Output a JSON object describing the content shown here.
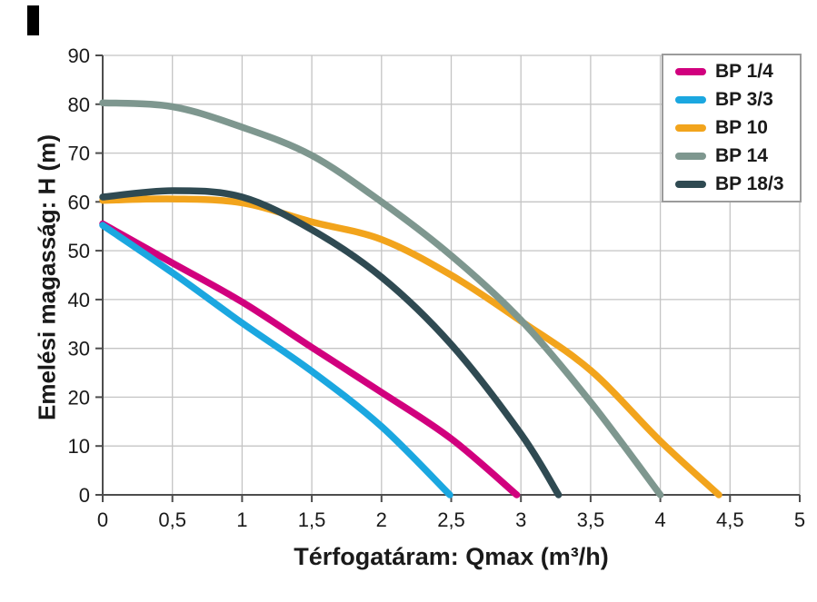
{
  "corner_mark": {
    "color": "#000000"
  },
  "chart_data": {
    "type": "line",
    "title": "",
    "xlabel": "Térfogatáram: Qmax (m³/h)",
    "ylabel": "Emelési magasság: H (m)",
    "xlim": [
      0,
      5
    ],
    "ylim": [
      0,
      90
    ],
    "grid": true,
    "legend_position": "top-right",
    "x_ticks": [
      0,
      0.5,
      1,
      1.5,
      2,
      2.5,
      3,
      3.5,
      4,
      4.5,
      5
    ],
    "x_tick_labels": [
      "0",
      "0,5",
      "1",
      "1,5",
      "2",
      "2,5",
      "3",
      "3,5",
      "4",
      "4,5",
      "5"
    ],
    "y_ticks": [
      0,
      10,
      20,
      30,
      40,
      50,
      60,
      70,
      80,
      90
    ],
    "y_tick_labels": [
      "0",
      "10",
      "20",
      "30",
      "40",
      "50",
      "60",
      "70",
      "80",
      "90"
    ],
    "grid_color": "#c4c4c4",
    "axis_color": "#4d4d4d",
    "series": [
      {
        "name": "BP 1/4",
        "color": "#d1007e",
        "points": [
          [
            0,
            55.5
          ],
          [
            0.5,
            47.5
          ],
          [
            1,
            39.5
          ],
          [
            1.5,
            30.2
          ],
          [
            2,
            21
          ],
          [
            2.5,
            11.5
          ],
          [
            2.97,
            0
          ]
        ]
      },
      {
        "name": "BP 3/3",
        "color": "#1ba7e0",
        "points": [
          [
            0,
            55.2
          ],
          [
            0.5,
            45.5
          ],
          [
            1,
            35.2
          ],
          [
            1.5,
            25.3
          ],
          [
            2,
            14
          ],
          [
            2.49,
            0
          ]
        ]
      },
      {
        "name": "BP 10",
        "color": "#f2a41c",
        "points": [
          [
            0,
            60.3
          ],
          [
            0.5,
            60.6
          ],
          [
            1,
            59.8
          ],
          [
            1.5,
            55.9
          ],
          [
            2,
            52.3
          ],
          [
            2.5,
            45
          ],
          [
            3,
            35.6
          ],
          [
            3.5,
            25.5
          ],
          [
            4,
            11
          ],
          [
            4.42,
            0
          ]
        ]
      },
      {
        "name": "BP 14",
        "color": "#7e978f",
        "points": [
          [
            0,
            80.3
          ],
          [
            0.5,
            79.5
          ],
          [
            1,
            75.3
          ],
          [
            1.5,
            69.5
          ],
          [
            2,
            60
          ],
          [
            2.5,
            49
          ],
          [
            3,
            35.8
          ],
          [
            3.5,
            19
          ],
          [
            4,
            0
          ]
        ]
      },
      {
        "name": "BP 18/3",
        "color": "#2f4a52",
        "points": [
          [
            0,
            61
          ],
          [
            0.5,
            62.3
          ],
          [
            1,
            61
          ],
          [
            1.5,
            54.3
          ],
          [
            2,
            44.6
          ],
          [
            2.5,
            30.8
          ],
          [
            3,
            12.5
          ],
          [
            3.27,
            0
          ]
        ]
      }
    ]
  }
}
